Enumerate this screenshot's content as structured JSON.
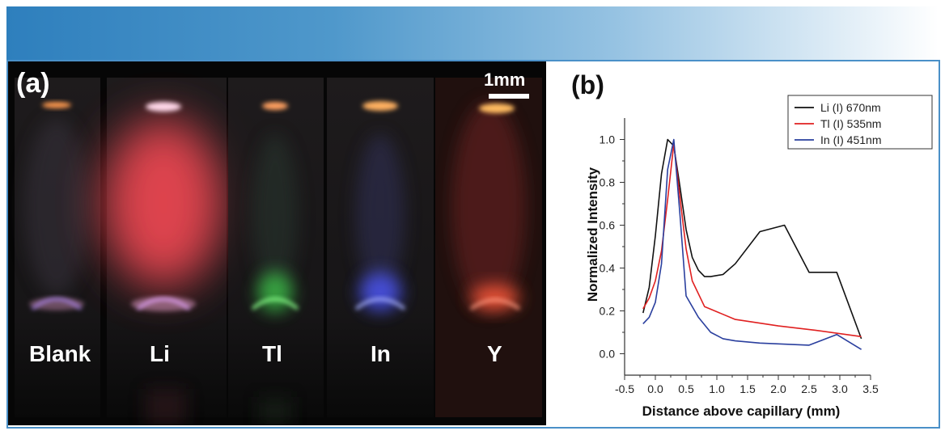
{
  "panel_a": {
    "label": "(a)",
    "scale_label": "1mm",
    "samples": [
      "Blank",
      "Li",
      "Tl",
      "In",
      "Y"
    ]
  },
  "chart_data": {
    "type": "line",
    "panel_label": "(b)",
    "xlabel": "Distance above capillary (mm)",
    "ylabel": "Normalized Intensity",
    "xlim": [
      -0.5,
      3.5
    ],
    "ylim": [
      -0.1,
      1.1
    ],
    "xticks": [
      "-0.5",
      "0.0",
      "0.5",
      "1.0",
      "1.5",
      "2.0",
      "2.5",
      "3.0",
      "3.5"
    ],
    "yticks": [
      "0.0",
      "0.2",
      "0.4",
      "0.6",
      "0.8",
      "1.0"
    ],
    "legend_position": "top-right",
    "series": [
      {
        "name": "Li (I) 670nm",
        "color": "#111111",
        "x": [
          -0.2,
          -0.1,
          0.0,
          0.1,
          0.2,
          0.3,
          0.4,
          0.5,
          0.6,
          0.7,
          0.8,
          0.9,
          1.1,
          1.3,
          1.7,
          2.1,
          2.5,
          2.95,
          3.35
        ],
        "y": [
          0.19,
          0.31,
          0.55,
          0.84,
          1.0,
          0.97,
          0.78,
          0.58,
          0.45,
          0.39,
          0.36,
          0.36,
          0.37,
          0.42,
          0.57,
          0.6,
          0.38,
          0.38,
          0.07
        ]
      },
      {
        "name": "Tl (I) 535nm",
        "color": "#e02020",
        "x": [
          -0.2,
          -0.1,
          0.0,
          0.1,
          0.2,
          0.3,
          0.4,
          0.5,
          0.6,
          0.8,
          1.3,
          2.0,
          2.6,
          3.35
        ],
        "y": [
          0.21,
          0.26,
          0.34,
          0.48,
          0.72,
          0.98,
          0.73,
          0.49,
          0.34,
          0.22,
          0.16,
          0.13,
          0.11,
          0.08
        ]
      },
      {
        "name": "In (I) 451nm",
        "color": "#2a3f9e",
        "x": [
          -0.2,
          -0.1,
          0.0,
          0.1,
          0.2,
          0.3,
          0.4,
          0.5,
          0.7,
          0.9,
          1.1,
          1.3,
          1.7,
          2.5,
          2.95,
          3.35
        ],
        "y": [
          0.14,
          0.17,
          0.24,
          0.42,
          0.86,
          1.0,
          0.65,
          0.27,
          0.17,
          0.1,
          0.07,
          0.06,
          0.05,
          0.04,
          0.09,
          0.02
        ]
      }
    ]
  }
}
